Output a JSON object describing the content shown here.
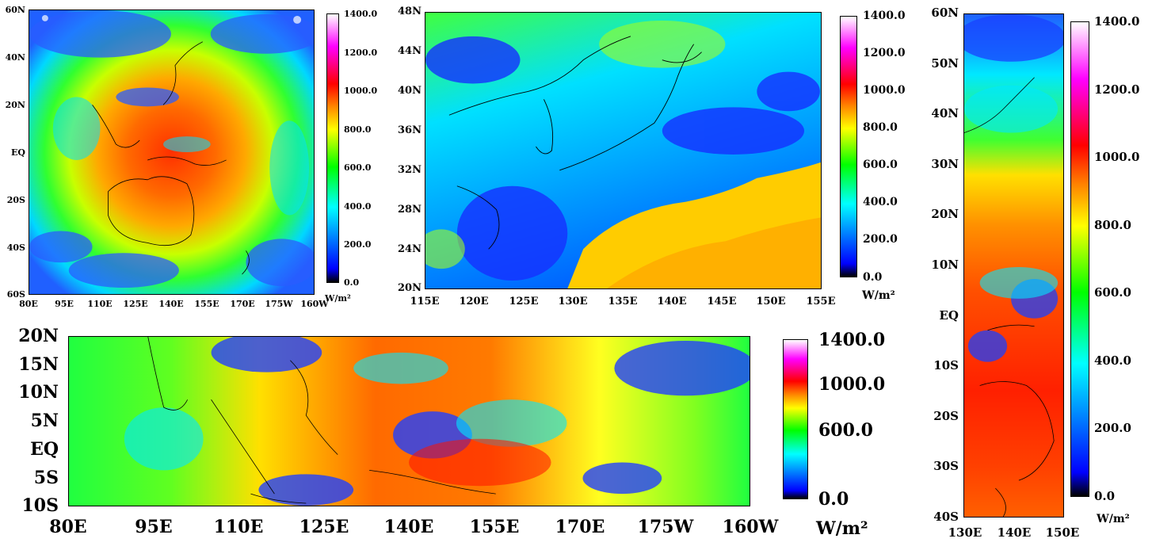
{
  "panels": [
    {
      "id": "full-disk",
      "lat_labels": [
        "60N",
        "40N",
        "20N",
        "EQ",
        "20S",
        "40S",
        "60S"
      ],
      "lon_labels": [
        "80E",
        "95E",
        "110E",
        "125E",
        "140E",
        "155E",
        "170E",
        "175W",
        "160W"
      ],
      "colorbar": {
        "ticks": [
          "1400.0",
          "1200.0",
          "1000.0",
          "800.0",
          "600.0",
          "400.0",
          "200.0",
          "0.0"
        ],
        "unit": "W/m²"
      }
    },
    {
      "id": "japan",
      "lat_labels": [
        "48N",
        "44N",
        "40N",
        "36N",
        "32N",
        "28N",
        "24N",
        "20N"
      ],
      "lon_labels": [
        "115E",
        "120E",
        "125E",
        "130E",
        "135E",
        "140E",
        "145E",
        "150E",
        "155E"
      ],
      "colorbar": {
        "ticks": [
          "1400.0",
          "1200.0",
          "1000.0",
          "800.0",
          "600.0",
          "400.0",
          "200.0",
          "0.0"
        ],
        "unit": "W/m²"
      }
    },
    {
      "id": "tropical-band",
      "lat_labels": [
        "20N",
        "15N",
        "10N",
        "5N",
        "EQ",
        "5S",
        "10S"
      ],
      "lon_labels": [
        "80E",
        "95E",
        "110E",
        "125E",
        "140E",
        "155E",
        "170E",
        "175W",
        "160W"
      ],
      "colorbar": {
        "ticks": [
          "1400.0",
          "1000.0",
          "600.0",
          "0.0"
        ],
        "unit": "W/m²"
      }
    },
    {
      "id": "meridional-strip",
      "lat_labels": [
        "60N",
        "50N",
        "40N",
        "30N",
        "20N",
        "10N",
        "EQ",
        "10S",
        "20S",
        "30S",
        "40S"
      ],
      "lon_labels": [
        "130E",
        "140E",
        "150E"
      ],
      "colorbar": {
        "ticks": [
          "1400.0",
          "1200.0",
          "1000.0",
          "800.0",
          "600.0",
          "400.0",
          "200.0",
          "0.0"
        ],
        "unit": "W/m²"
      }
    }
  ],
  "colorscale": [
    "#000000",
    "#0000ff",
    "#00ffff",
    "#00ff00",
    "#ffff00",
    "#ff7f00",
    "#ff0000",
    "#ff00ff",
    "#ffffff"
  ]
}
